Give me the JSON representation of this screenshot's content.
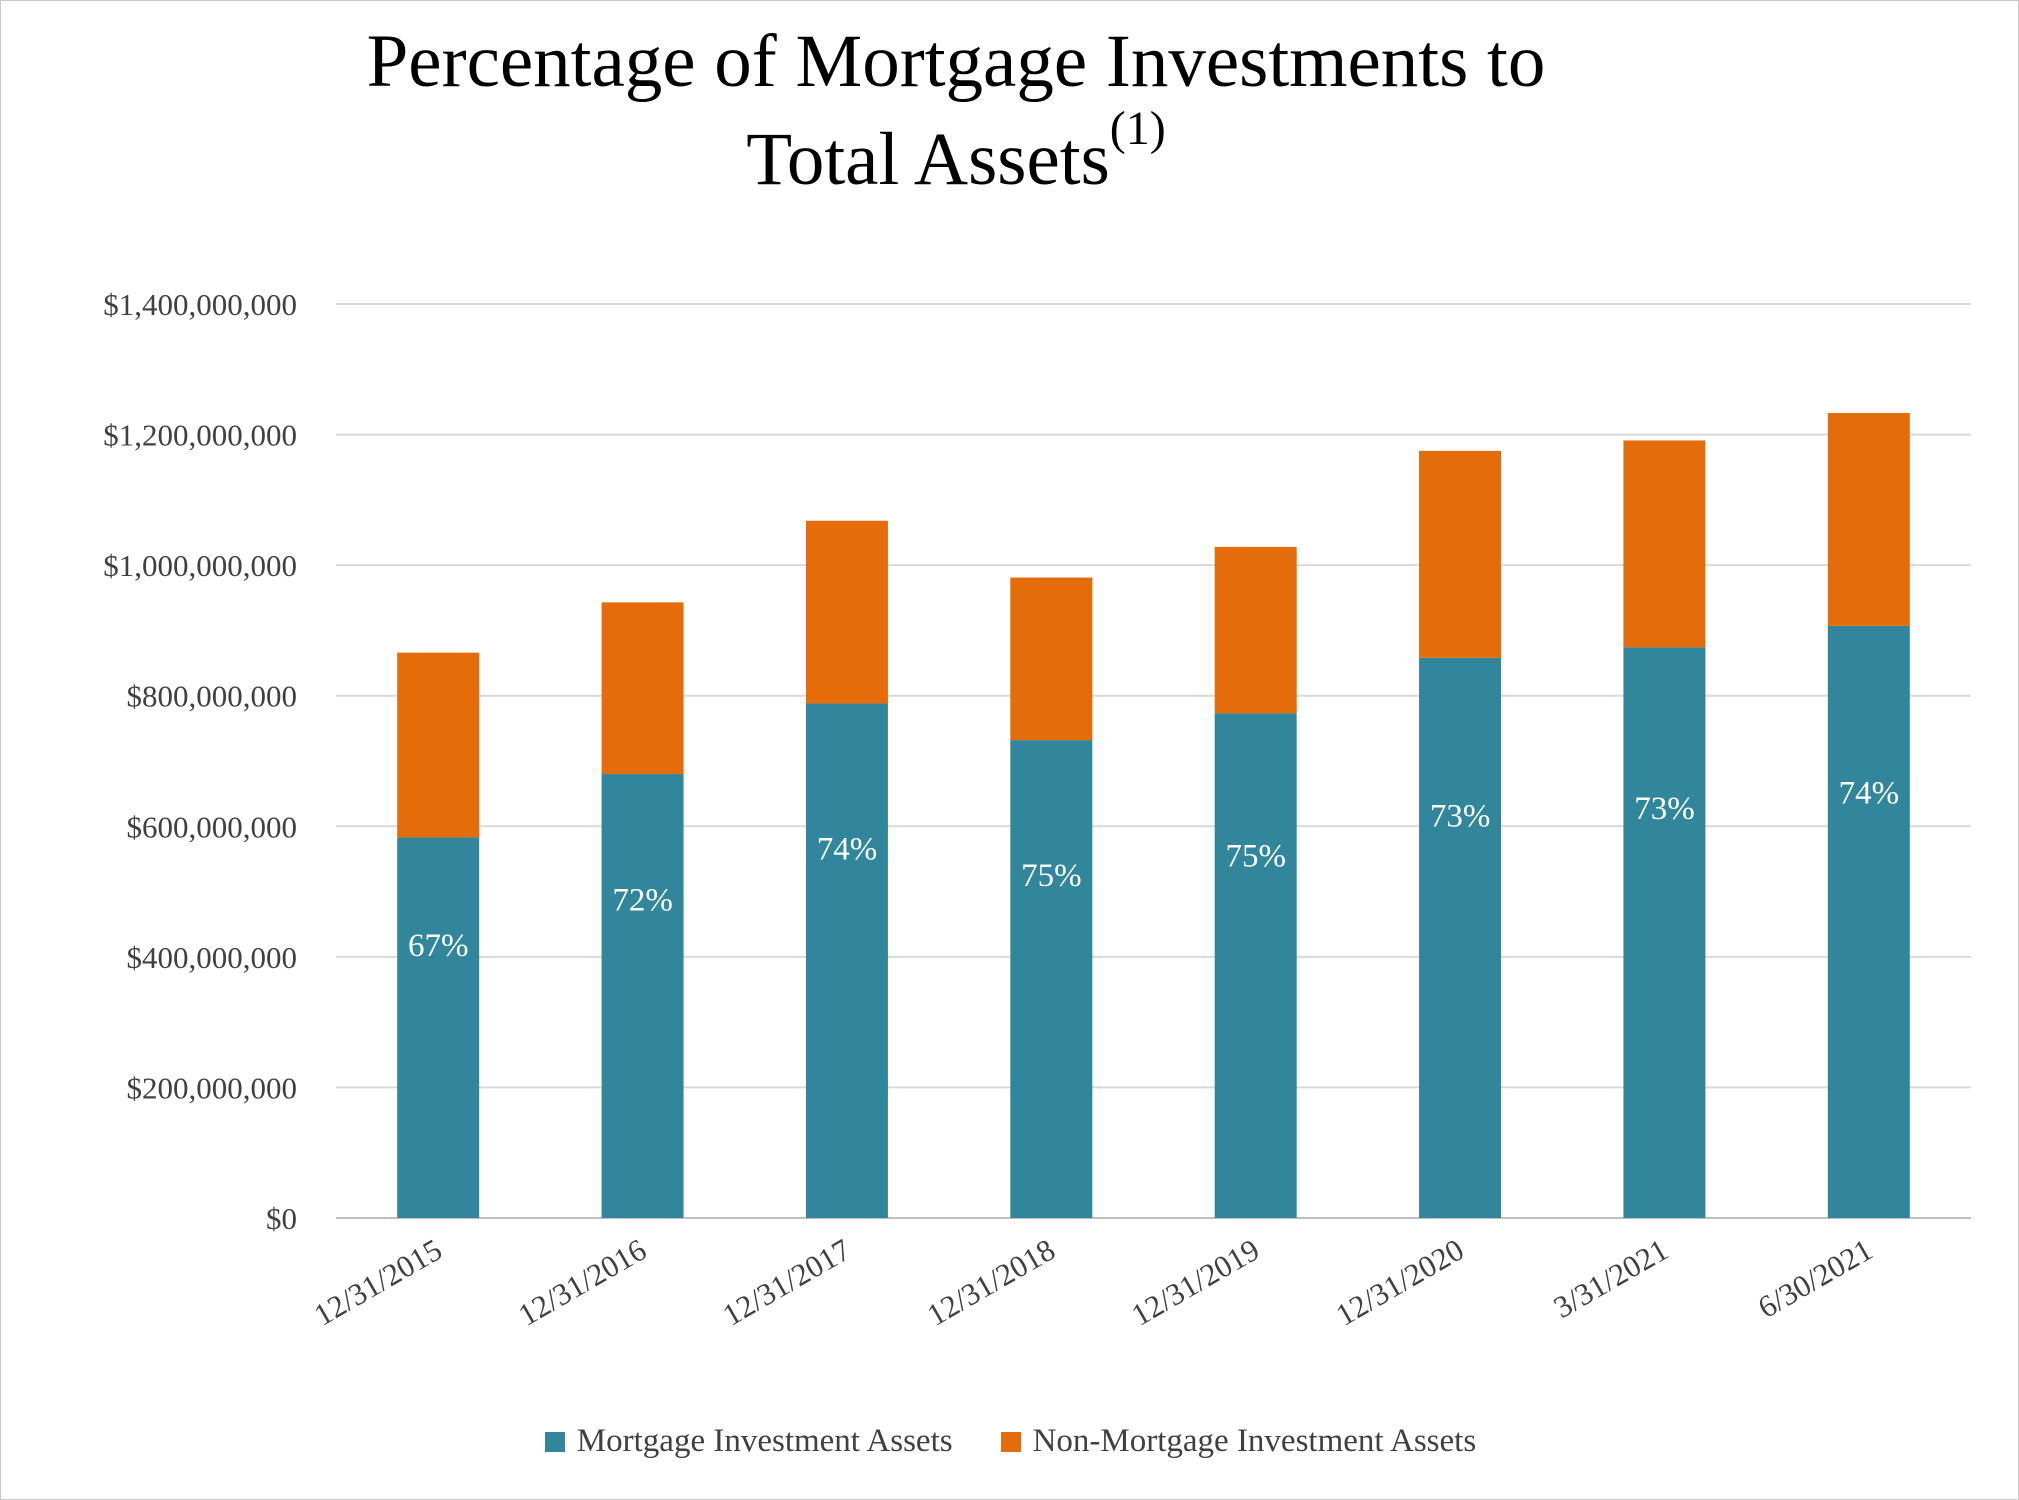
{
  "chart_data": {
    "type": "bar",
    "stacked": true,
    "title": "Percentage of Mortgage Investments to",
    "title_line2": "Total Assets",
    "title_superscript": "(1)",
    "xlabel": "",
    "ylabel": "",
    "ylim": [
      0,
      1400000000
    ],
    "yticks": [
      "$0",
      "$200,000,000",
      "$400,000,000",
      "$600,000,000",
      "$800,000,000",
      "$1,000,000,000",
      "$1,200,000,000",
      "$1,400,000,000"
    ],
    "ytick_values": [
      0,
      200000000,
      400000000,
      600000000,
      800000000,
      1000000000,
      1200000000,
      1400000000
    ],
    "grid": true,
    "legend_position": "bottom",
    "categories": [
      "12/31/2015",
      "12/31/2016",
      "12/31/2017",
      "12/31/2018",
      "12/31/2019",
      "12/31/2020",
      "3/31/2021",
      "6/30/2021"
    ],
    "series": [
      {
        "name": "Mortgage Investment Assets",
        "color": "#31869b",
        "values": [
          583000000,
          680000000,
          788000000,
          732000000,
          773000000,
          858000000,
          874000000,
          907000000
        ]
      },
      {
        "name": "Non-Mortgage Investment Assets",
        "color": "#e46c0a",
        "values": [
          283000000,
          263000000,
          280000000,
          249000000,
          255000000,
          317000000,
          317000000,
          326000000
        ]
      }
    ],
    "data_labels": [
      "67%",
      "72%",
      "74%",
      "75%",
      "75%",
      "73%",
      "73%",
      "74%"
    ]
  }
}
